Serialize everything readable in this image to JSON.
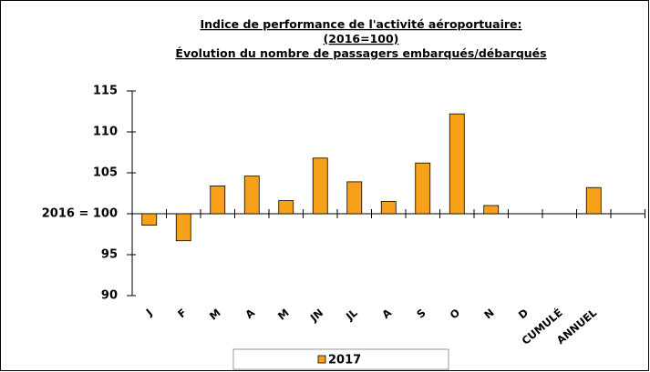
{
  "chart_data": {
    "type": "bar",
    "title": [
      "Indice de performance de l'activité aéroportuaire:",
      "(2016=100)",
      "Évolution du nombre de passagers embarqués/débarqués"
    ],
    "categories": [
      "J",
      "F",
      "M",
      "A",
      "M",
      "JN",
      "JL",
      "A",
      "S",
      "O",
      "N",
      "D",
      "CUMULÉ",
      "ANNUEL",
      null
    ],
    "series": [
      {
        "name": "2017",
        "color": "#f7a11a",
        "values": [
          98.6,
          96.7,
          103.4,
          104.6,
          101.6,
          106.8,
          103.9,
          101.5,
          106.2,
          112.2,
          101.0,
          null,
          null,
          103.2,
          null
        ]
      }
    ],
    "ylim": [
      90,
      115
    ],
    "yticks": [
      90,
      95,
      {
        "value": 100,
        "label": "2016 = 100"
      },
      105,
      110,
      115
    ],
    "baseline": 100,
    "legend": "bottom"
  }
}
